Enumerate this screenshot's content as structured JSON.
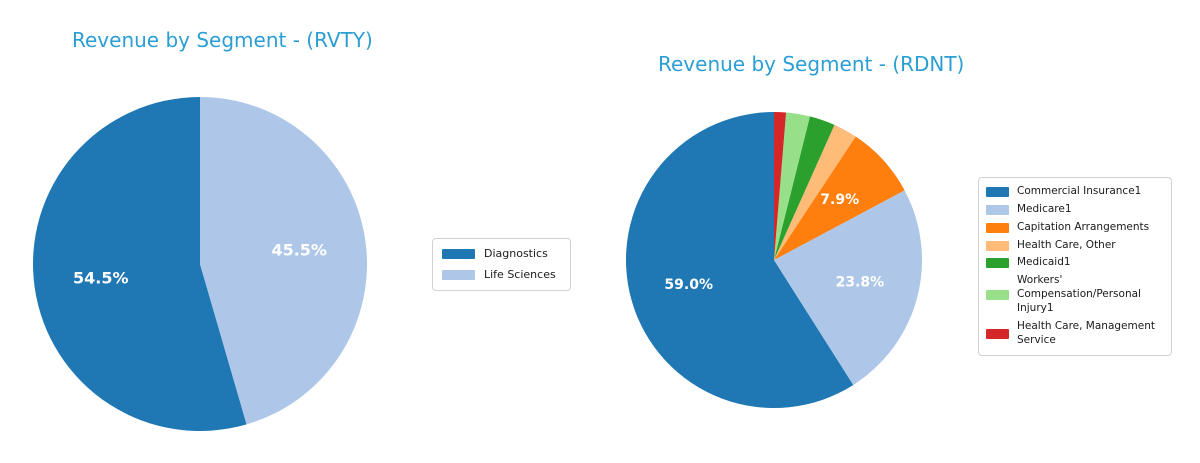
{
  "figure": {
    "background": "#ffffff",
    "title_color": "#2b9ed4",
    "pct_label_color": "#ffffff"
  },
  "chart_data": [
    {
      "id": "rvty",
      "type": "pie",
      "title": "Revenue by Segment - (RVTY)",
      "categories": [
        "Diagnostics",
        "Life Sciences"
      ],
      "values": [
        54.5,
        45.5
      ],
      "slice_labels": [
        "54.5%",
        "45.5%"
      ],
      "colors": [
        "#1f77b4",
        "#aec7e8"
      ],
      "startangle": 90,
      "counterclock": true,
      "legend_position": "center right",
      "legend_lines": [
        [
          "Diagnostics"
        ],
        [
          "Life Sciences"
        ]
      ]
    },
    {
      "id": "rdnt",
      "type": "pie",
      "title": "Revenue by Segment - (RDNT)",
      "categories": [
        "Commercial Insurance1",
        "Medicare1",
        "Capitation Arrangements",
        "Health Care, Other",
        "Medicaid1",
        "Workers' Compensation/Personal Injury1",
        "Health Care, Management Service"
      ],
      "values": [
        59.0,
        23.8,
        7.9,
        2.6,
        2.8,
        2.6,
        1.3
      ],
      "slice_labels": [
        "59.0%",
        "23.8%",
        "7.9%",
        "",
        "",
        "",
        ""
      ],
      "colors": [
        "#1f77b4",
        "#aec7e8",
        "#ff7f0e",
        "#ffbb78",
        "#2ca02c",
        "#98df8a",
        "#d62728"
      ],
      "startangle": 90,
      "counterclock": true,
      "legend_position": "center right",
      "legend_lines": [
        [
          "Commercial Insurance1"
        ],
        [
          "Medicare1"
        ],
        [
          "Capitation Arrangements"
        ],
        [
          "Health Care, Other"
        ],
        [
          "Medicaid1"
        ],
        [
          "Workers'",
          "Compensation/Personal",
          "Injury1"
        ],
        [
          "Health Care, Management",
          "Service"
        ]
      ]
    }
  ]
}
